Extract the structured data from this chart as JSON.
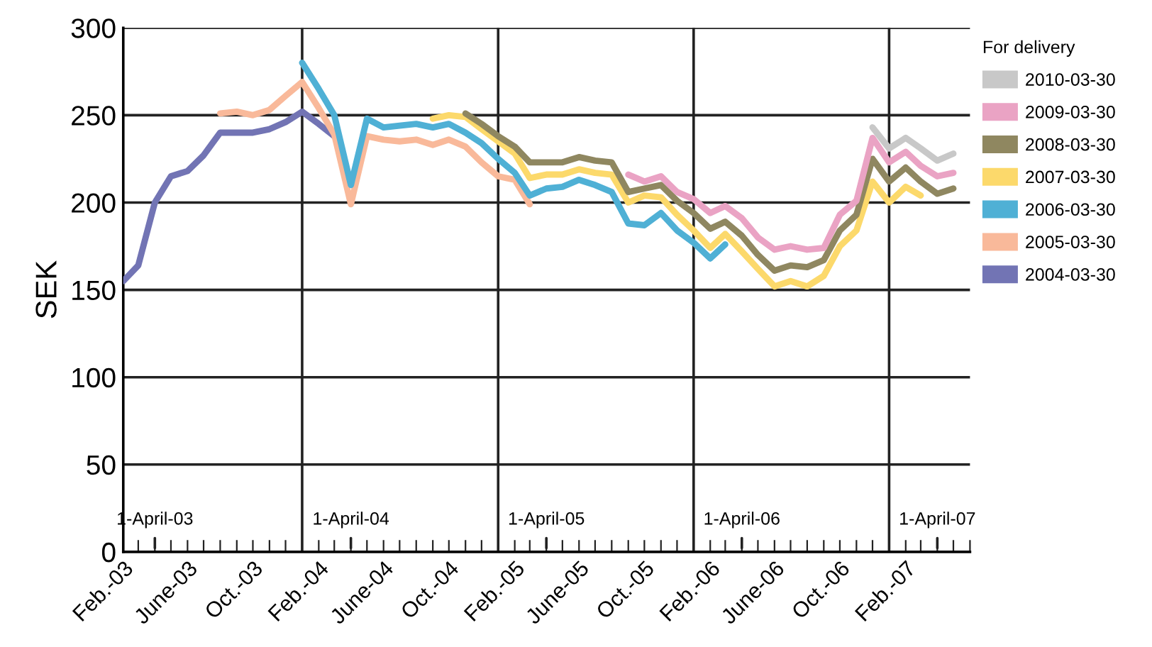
{
  "chart_data": {
    "type": "line",
    "ylabel": "SEK",
    "legend_title": "For delivery",
    "x": [
      "2003-02",
      "2003-03",
      "2003-04",
      "2003-05",
      "2003-06",
      "2003-07",
      "2003-08",
      "2003-09",
      "2003-10",
      "2003-11",
      "2003-12",
      "2004-01",
      "2004-02",
      "2004-03",
      "2004-04",
      "2004-05",
      "2004-06",
      "2004-07",
      "2004-08",
      "2004-09",
      "2004-10",
      "2004-11",
      "2004-12",
      "2005-01",
      "2005-02",
      "2005-03",
      "2005-04",
      "2005-05",
      "2005-06",
      "2005-07",
      "2005-08",
      "2005-09",
      "2005-10",
      "2005-11",
      "2005-12",
      "2006-01",
      "2006-02",
      "2006-03",
      "2006-04",
      "2006-05",
      "2006-06",
      "2006-07",
      "2006-08",
      "2006-09",
      "2006-10",
      "2006-11",
      "2006-12",
      "2007-01",
      "2007-02",
      "2007-03",
      "2007-04",
      "2007-05"
    ],
    "series": [
      {
        "name": "2010-03-30",
        "color": "#c8c8c8",
        "values": [
          null,
          null,
          null,
          null,
          null,
          null,
          null,
          null,
          null,
          null,
          null,
          null,
          null,
          null,
          null,
          null,
          null,
          null,
          null,
          null,
          null,
          null,
          null,
          null,
          null,
          null,
          null,
          null,
          null,
          null,
          null,
          null,
          null,
          null,
          null,
          null,
          null,
          null,
          null,
          null,
          null,
          null,
          null,
          null,
          null,
          null,
          243,
          231,
          237,
          231,
          224,
          228
        ]
      },
      {
        "name": "2009-03-30",
        "color": "#eaa3c4",
        "values": [
          null,
          null,
          null,
          null,
          null,
          null,
          null,
          null,
          null,
          null,
          null,
          null,
          null,
          null,
          null,
          null,
          null,
          null,
          null,
          null,
          null,
          null,
          null,
          null,
          null,
          null,
          null,
          null,
          null,
          null,
          null,
          216,
          212,
          215,
          206,
          202,
          194,
          198,
          191,
          180,
          173,
          175,
          173,
          174,
          193,
          201,
          237,
          223,
          229,
          221,
          215,
          217
        ]
      },
      {
        "name": "2008-03-30",
        "color": "#8f8760",
        "values": [
          null,
          null,
          null,
          null,
          null,
          null,
          null,
          null,
          null,
          null,
          null,
          null,
          null,
          null,
          null,
          null,
          null,
          null,
          null,
          null,
          null,
          251,
          245,
          238,
          232,
          223,
          223,
          223,
          226,
          224,
          223,
          206,
          208,
          210,
          201,
          194,
          185,
          189,
          181,
          170,
          161,
          164,
          163,
          167,
          184,
          193,
          225,
          212,
          220,
          212,
          205,
          208
        ]
      },
      {
        "name": "2007-03-30",
        "color": "#fcd96b",
        "values": [
          null,
          null,
          null,
          null,
          null,
          null,
          null,
          null,
          null,
          null,
          null,
          null,
          null,
          null,
          null,
          null,
          null,
          null,
          null,
          248,
          250,
          249,
          242,
          235,
          228,
          214,
          216,
          216,
          219,
          217,
          216,
          200,
          204,
          203,
          193,
          184,
          174,
          182,
          172,
          162,
          152,
          155,
          152,
          158,
          175,
          184,
          212,
          200,
          209,
          204,
          null,
          null
        ]
      },
      {
        "name": "2006-03-30",
        "color": "#4fb0d5",
        "values": [
          null,
          null,
          null,
          null,
          null,
          null,
          null,
          null,
          null,
          null,
          null,
          280,
          265,
          250,
          210,
          248,
          243,
          244,
          245,
          243,
          245,
          240,
          234,
          225,
          217,
          204,
          208,
          209,
          213,
          210,
          206,
          188,
          187,
          194,
          184,
          177,
          168,
          176,
          null,
          null,
          null,
          null,
          null,
          null,
          null,
          null,
          null,
          null,
          null,
          null,
          null,
          null
        ]
      },
      {
        "name": "2005-03-30",
        "color": "#f9b99a",
        "values": [
          null,
          null,
          null,
          null,
          null,
          null,
          251,
          252,
          250,
          253,
          261,
          269,
          254,
          239,
          199,
          238,
          236,
          235,
          236,
          233,
          236,
          232,
          223,
          215,
          213,
          199,
          null,
          null,
          null,
          null,
          null,
          null,
          null,
          null,
          null,
          null,
          null,
          null,
          null,
          null,
          null,
          null,
          null,
          null,
          null,
          null,
          null,
          null,
          null,
          null,
          null,
          null
        ]
      },
      {
        "name": "2004-03-30",
        "color": "#7274b4",
        "values": [
          155,
          164,
          200,
          215,
          218,
          227,
          240,
          240,
          240,
          242,
          246,
          252,
          245,
          238,
          null,
          null,
          null,
          null,
          null,
          null,
          null,
          null,
          null,
          null,
          null,
          null,
          null,
          null,
          null,
          null,
          null,
          null,
          null,
          null,
          null,
          null,
          null,
          null,
          null,
          null,
          null,
          null,
          null,
          null,
          null,
          null,
          null,
          null,
          null,
          null,
          null,
          null
        ]
      }
    ],
    "xlim": [
      "2003-02",
      "2007-06"
    ],
    "xticks": [
      {
        "value": "2003-02",
        "label": "Feb.-03"
      },
      {
        "value": "2003-03",
        "label": null
      },
      {
        "value": "2003-04",
        "label": null
      },
      {
        "value": "2003-05",
        "label": null
      },
      {
        "value": "2003-06",
        "label": "June-03"
      },
      {
        "value": "2003-07",
        "label": null
      },
      {
        "value": "2003-08",
        "label": null
      },
      {
        "value": "2003-09",
        "label": null
      },
      {
        "value": "2003-10",
        "label": "Oct.-03"
      },
      {
        "value": "2003-11",
        "label": null
      },
      {
        "value": "2003-12",
        "label": null
      },
      {
        "value": "2004-01",
        "label": null
      },
      {
        "value": "2004-02",
        "label": "Feb.-04"
      },
      {
        "value": "2004-03",
        "label": null
      },
      {
        "value": "2004-04",
        "label": null
      },
      {
        "value": "2004-05",
        "label": null
      },
      {
        "value": "2004-06",
        "label": "June-04"
      },
      {
        "value": "2004-07",
        "label": null
      },
      {
        "value": "2004-08",
        "label": null
      },
      {
        "value": "2004-09",
        "label": null
      },
      {
        "value": "2004-10",
        "label": "Oct.-04"
      },
      {
        "value": "2004-11",
        "label": null
      },
      {
        "value": "2004-12",
        "label": null
      },
      {
        "value": "2005-01",
        "label": null
      },
      {
        "value": "2005-02",
        "label": "Feb.-05"
      },
      {
        "value": "2005-03",
        "label": null
      },
      {
        "value": "2005-04",
        "label": null
      },
      {
        "value": "2005-05",
        "label": null
      },
      {
        "value": "2005-06",
        "label": "June-05"
      },
      {
        "value": "2005-07",
        "label": null
      },
      {
        "value": "2005-08",
        "label": null
      },
      {
        "value": "2005-09",
        "label": null
      },
      {
        "value": "2005-10",
        "label": "Oct.-05"
      },
      {
        "value": "2005-11",
        "label": null
      },
      {
        "value": "2005-12",
        "label": null
      },
      {
        "value": "2006-01",
        "label": null
      },
      {
        "value": "2006-02",
        "label": "Feb.-06"
      },
      {
        "value": "2006-03",
        "label": null
      },
      {
        "value": "2006-04",
        "label": null
      },
      {
        "value": "2006-05",
        "label": null
      },
      {
        "value": "2006-06",
        "label": "June-06"
      },
      {
        "value": "2006-07",
        "label": null
      },
      {
        "value": "2006-08",
        "label": null
      },
      {
        "value": "2006-09",
        "label": null
      },
      {
        "value": "2006-10",
        "label": "Oct.-06"
      },
      {
        "value": "2006-11",
        "label": null
      },
      {
        "value": "2006-12",
        "label": null
      },
      {
        "value": "2007-01",
        "label": null
      },
      {
        "value": "2007-02",
        "label": "Feb.-07"
      },
      {
        "value": "2007-03",
        "label": null
      },
      {
        "value": "2007-04",
        "label": null
      },
      {
        "value": "2007-05",
        "label": null
      },
      {
        "value": "2007-06",
        "label": null
      }
    ],
    "ylim": [
      0,
      300
    ],
    "yticks": [
      0,
      50,
      100,
      150,
      200,
      250,
      300
    ],
    "grid": "y",
    "legend": "right",
    "line_style": "solid",
    "marker": "none",
    "ref_lines": [
      {
        "axis": "x",
        "value": "2004-01",
        "color": "#222222"
      },
      {
        "axis": "x",
        "value": "2005-01",
        "color": "#222222"
      },
      {
        "axis": "x",
        "value": "2006-01",
        "color": "#222222"
      },
      {
        "axis": "x",
        "value": "2007-01",
        "color": "#222222"
      }
    ],
    "annotations": [
      "1-April-03",
      "1-April-04",
      "1-April-05",
      "1-April-06",
      "1-April-07"
    ]
  }
}
